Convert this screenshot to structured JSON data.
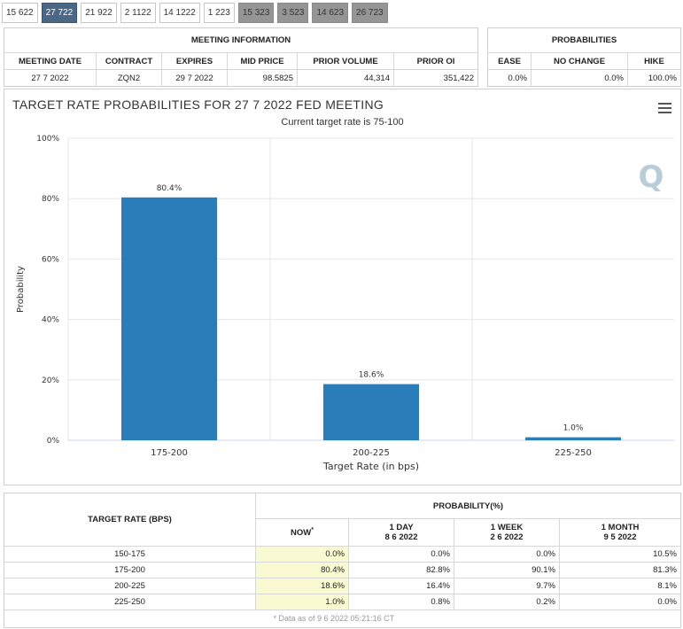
{
  "tabs": [
    {
      "label": "15 622",
      "state": "normal"
    },
    {
      "label": "27 722",
      "state": "active"
    },
    {
      "label": "21 922",
      "state": "normal"
    },
    {
      "label": "2 1122",
      "state": "normal"
    },
    {
      "label": "14 1222",
      "state": "normal"
    },
    {
      "label": "1 223",
      "state": "normal"
    },
    {
      "label": "15 323",
      "state": "dark"
    },
    {
      "label": "3 523",
      "state": "dark"
    },
    {
      "label": "14 623",
      "state": "dark"
    },
    {
      "label": "26 723",
      "state": "dark"
    }
  ],
  "meeting": {
    "title": "MEETING INFORMATION",
    "headers": {
      "date": "MEETING DATE",
      "contract": "CONTRACT",
      "expires": "EXPIRES",
      "mid": "MID PRICE",
      "volume": "PRIOR VOLUME",
      "oi": "PRIOR OI"
    },
    "values": {
      "date": "27 7 2022",
      "contract": "ZQN2",
      "expires": "29 7 2022",
      "mid": "98.5825",
      "volume": "44,314",
      "oi": "351,422"
    }
  },
  "probabilities": {
    "title": "PROBABILITIES",
    "headers": {
      "ease": "EASE",
      "no_change": "NO CHANGE",
      "hike": "HIKE"
    },
    "values": {
      "ease": "0.0%",
      "no_change": "0.0%",
      "hike": "100.0%"
    }
  },
  "chart_data": {
    "type": "bar",
    "title": "TARGET RATE PROBABILITIES FOR 27 7 2022 FED MEETING",
    "subtitle": "Current target rate is 75-100",
    "categories": [
      "175-200",
      "200-225",
      "225-250"
    ],
    "values": [
      80.4,
      18.6,
      1.0
    ],
    "data_labels": [
      "80.4%",
      "18.6%",
      "1.0%"
    ],
    "xlabel": "Target Rate (in bps)",
    "ylabel": "Probability",
    "ylim": [
      0,
      100
    ],
    "yticks": [
      0,
      20,
      40,
      60,
      80,
      100
    ],
    "ytick_labels": [
      "0%",
      "20%",
      "40%",
      "60%",
      "80%",
      "100%"
    ],
    "bar_color": "#2a7db8",
    "watermark": "Q"
  },
  "bottom": {
    "target_header": "TARGET RATE (BPS)",
    "prob_header": "PROBABILITY(%)",
    "cols": [
      {
        "l1": "NOW",
        "l2": "",
        "sup": "*"
      },
      {
        "l1": "1 DAY",
        "l2": "8 6 2022"
      },
      {
        "l1": "1 WEEK",
        "l2": "2 6 2022"
      },
      {
        "l1": "1 MONTH",
        "l2": "9 5 2022"
      }
    ],
    "rows": [
      {
        "rate": "150-175",
        "now": "0.0%",
        "day": "0.0%",
        "week": "0.0%",
        "month": "10.5%"
      },
      {
        "rate": "175-200",
        "now": "80.4%",
        "day": "82.8%",
        "week": "90.1%",
        "month": "81.3%"
      },
      {
        "rate": "200-225",
        "now": "18.6%",
        "day": "16.4%",
        "week": "9.7%",
        "month": "8.1%"
      },
      {
        "rate": "225-250",
        "now": "1.0%",
        "day": "0.8%",
        "week": "0.2%",
        "month": "0.0%"
      }
    ],
    "footnote": "* Data as of 9 6 2022 05:21:16 CT"
  }
}
